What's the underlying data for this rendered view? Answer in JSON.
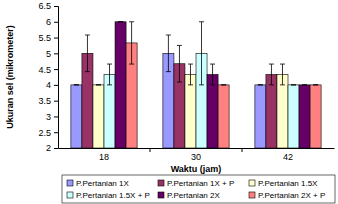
{
  "chart_data": {
    "type": "bar",
    "x_label": "Waktu (jam)",
    "y_label": "Ukuran sel (mikrometer)",
    "categories": [
      "18",
      "30",
      "42"
    ],
    "ylim": [
      2,
      6.5
    ],
    "yticks": [
      2,
      2.5,
      3,
      3.5,
      4,
      4.5,
      5,
      5.5,
      6,
      6.5
    ],
    "grid": false,
    "legend": "bottom",
    "series": [
      {
        "name": "P.Pertanian 1X",
        "color": "#9999ff",
        "values": [
          4.0,
          5.0,
          4.0
        ],
        "errors": [
          0,
          0.58,
          0
        ]
      },
      {
        "name": "P.Pertanian 1X + P",
        "color": "#993366",
        "values": [
          5.0,
          4.67,
          4.33
        ],
        "errors": [
          0.58,
          0.58,
          0.33
        ]
      },
      {
        "name": "P.Pertanian 1.5X",
        "color": "#ffffcc",
        "values": [
          4.0,
          4.33,
          4.33
        ],
        "errors": [
          0,
          0.33,
          0.33
        ]
      },
      {
        "name": "P.Pertanian 1.5X + P",
        "color": "#ccffff",
        "values": [
          4.33,
          5.0,
          4.0
        ],
        "errors": [
          0.33,
          1.0,
          0
        ]
      },
      {
        "name": "P.Pertanian 2X",
        "color": "#660066",
        "values": [
          6.0,
          4.33,
          4.0
        ],
        "errors": [
          0,
          0.33,
          0
        ]
      },
      {
        "name": "P.Pertanian 2X + P",
        "color": "#ff8080",
        "values": [
          5.33,
          4.0,
          4.0
        ],
        "errors": [
          0.67,
          0,
          0
        ]
      }
    ]
  }
}
